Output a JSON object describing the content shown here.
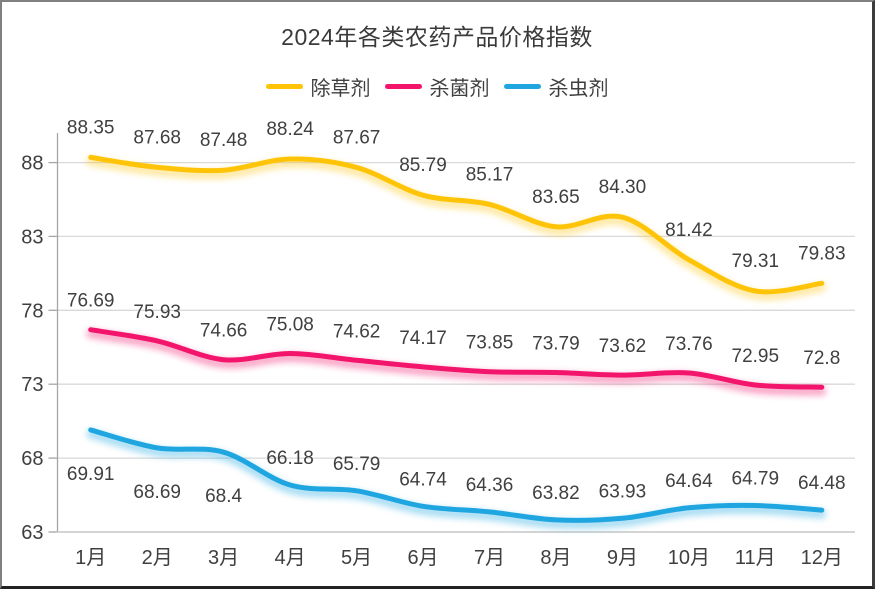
{
  "chart_data": {
    "type": "line",
    "title": "2024年各类农药产品价格指数",
    "xlabel": "",
    "ylabel": "",
    "categories": [
      "1月",
      "2月",
      "3月",
      "4月",
      "5月",
      "6月",
      "7月",
      "8月",
      "9月",
      "10月",
      "11月",
      "12月"
    ],
    "series": [
      {
        "name": "除草剂",
        "color": "#FFC408",
        "values": [
          88.35,
          87.68,
          87.48,
          88.24,
          87.67,
          85.79,
          85.17,
          83.65,
          84.3,
          81.42,
          79.31,
          79.83
        ],
        "labels": [
          "88.35",
          "87.68",
          "87.48",
          "88.24",
          "87.67",
          "85.79",
          "85.17",
          "83.65",
          "84.30",
          "81.42",
          "79.31",
          "79.83"
        ]
      },
      {
        "name": "杀菌剂",
        "color": "#F2156B",
        "values": [
          76.69,
          75.93,
          74.66,
          75.08,
          74.62,
          74.17,
          73.85,
          73.79,
          73.62,
          73.76,
          72.95,
          72.8
        ],
        "labels": [
          "76.69",
          "75.93",
          "74.66",
          "75.08",
          "74.62",
          "74.17",
          "73.85",
          "73.79",
          "73.62",
          "73.76",
          "72.95",
          "72.8"
        ]
      },
      {
        "name": "杀虫剂",
        "color": "#1FA6E0",
        "values": [
          69.91,
          68.69,
          68.4,
          66.18,
          65.79,
          64.74,
          64.36,
          63.82,
          63.93,
          64.64,
          64.79,
          64.48
        ],
        "labels": [
          "69.91",
          "68.69",
          "68.4",
          "66.18",
          "65.79",
          "64.74",
          "64.36",
          "63.82",
          "63.93",
          "64.64",
          "64.79",
          "64.48"
        ]
      }
    ],
    "y_ticks": [
      63,
      68,
      73,
      78,
      83,
      88
    ],
    "ylim": [
      63,
      90
    ],
    "grid": true,
    "smooth_lines": true,
    "data_labels_shown": true,
    "legend_position": "top",
    "colors": {
      "grid": "#D9D9D9",
      "y_axis": "#A6A6A6",
      "x_axis": "#C0C0C0",
      "data_label": "#404040",
      "axis_label": "#3f3f3f",
      "title": "#3a3a3a"
    }
  }
}
